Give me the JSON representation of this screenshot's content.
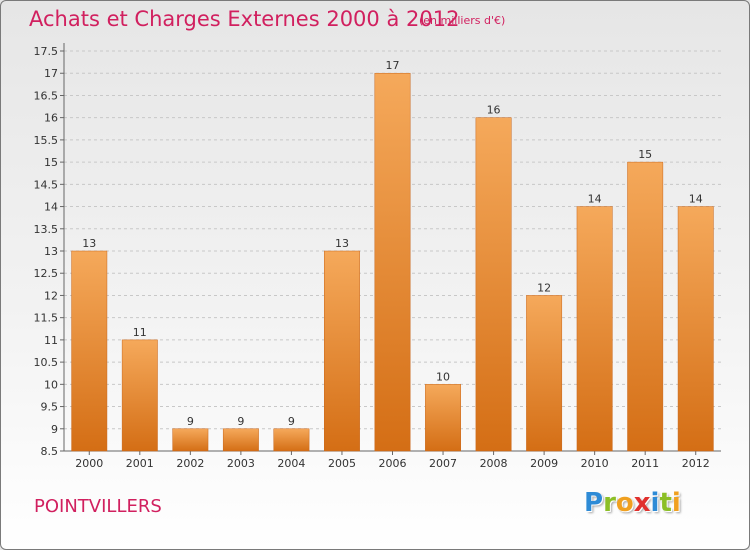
{
  "header": {
    "title": "Achats et Charges Externes 2000 à 2012",
    "subtitle": "(en milliers d'€)"
  },
  "footer": {
    "place": "POINTVILLERS",
    "brand": [
      "P",
      "r",
      "o",
      "x",
      "i",
      "t",
      "i"
    ],
    "brand_colors": [
      "#2e8bd6",
      "#8cbf26",
      "#f0a020",
      "#e0302d",
      "#2e8bd6",
      "#8cbf26",
      "#f0a020"
    ]
  },
  "colors": {
    "bar_top": "#f5a95b",
    "bar_bottom": "#d46e15",
    "grid": "#c8c8c8",
    "axis": "#666666"
  },
  "chart_data": {
    "type": "bar",
    "categories": [
      "2000",
      "2001",
      "2002",
      "2003",
      "2004",
      "2005",
      "2006",
      "2007",
      "2008",
      "2009",
      "2010",
      "2011",
      "2012"
    ],
    "values": [
      13,
      11,
      9,
      9,
      9,
      13,
      17,
      10,
      16,
      12,
      14,
      15,
      14
    ],
    "title": "Achats et Charges Externes 2000 à 2012",
    "xlabel": "",
    "ylabel": "",
    "ylim": [
      8.5,
      17.5
    ],
    "yticks": [
      "8.5",
      "9",
      "9.5",
      "10",
      "10.5",
      "11",
      "11.5",
      "12",
      "12.5",
      "13",
      "13.5",
      "14",
      "14.5",
      "15",
      "15.5",
      "16",
      "16.5",
      "17",
      "17.5"
    ],
    "grid": true,
    "legend": "none"
  }
}
